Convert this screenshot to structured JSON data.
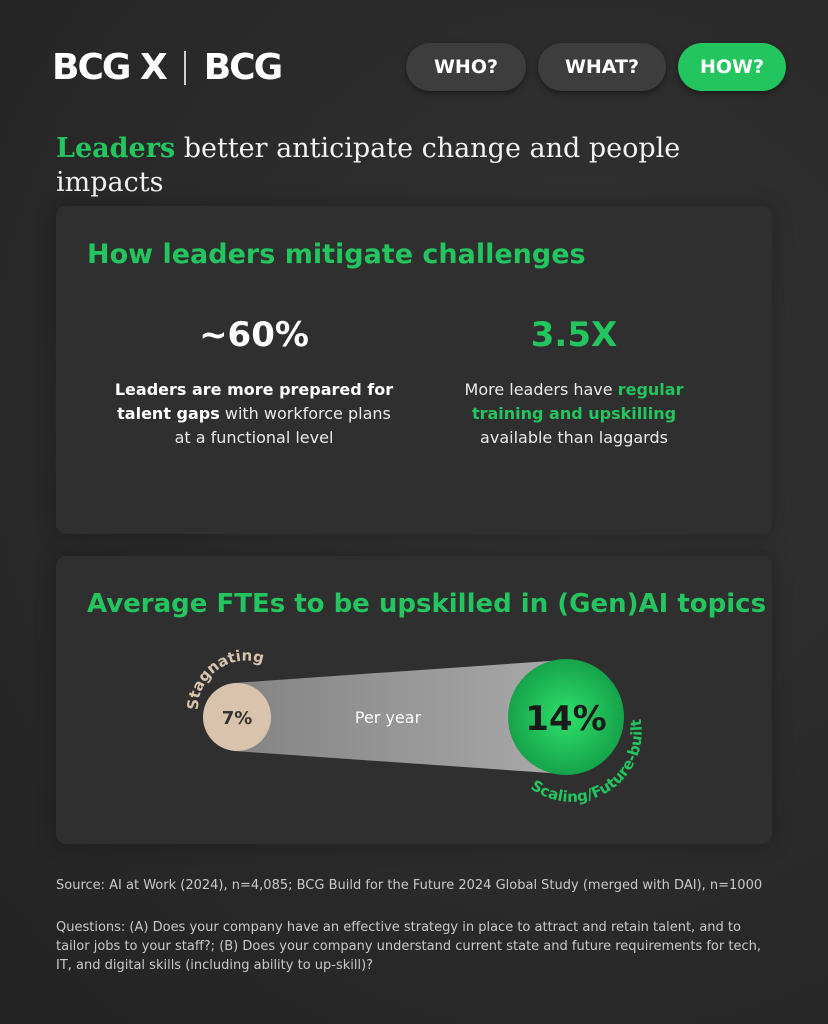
{
  "header": {
    "logo_left": "BCG X",
    "logo_right": "BCG",
    "nav": [
      "WHO?",
      "WHAT?",
      "HOW?"
    ]
  },
  "headline": {
    "accent": "Leaders",
    "rest": " better anticipate change and people impacts"
  },
  "mitigate": {
    "title": "How leaders mitigate challenges",
    "stat1": {
      "value": "~60%",
      "desc_bold": "Leaders are more prepared for talent gaps",
      "desc_rest": " with workforce plans at a functional level"
    },
    "stat2": {
      "value": "3.5X",
      "desc_pre": "More leaders have ",
      "desc_green": "regular training and upskilling",
      "desc_post": " available than laggards"
    }
  },
  "upskill": {
    "title": "Average FTEs to be upskilled in (Gen)AI topics",
    "left_label": "Stagnating",
    "left_value": "7%",
    "middle_label": "Per year",
    "right_value": "14%",
    "right_label": "Scaling/Future-built",
    "colors": {
      "left": "#d9c3ad",
      "right": "#22c55e",
      "band": "#a8a8a8"
    }
  },
  "footer": {
    "source": "Source: AI at Work (2024), n=4,085; BCG Build for the Future 2024 Global Study (merged with DAI), n=1000",
    "questions": "Questions: (A) Does your company have an effective strategy in place to attract and retain talent, and to tailor jobs to your staff?; (B) Does your company understand current state and future requirements for tech, IT, and digital skills (including ability to up-skill)?"
  }
}
